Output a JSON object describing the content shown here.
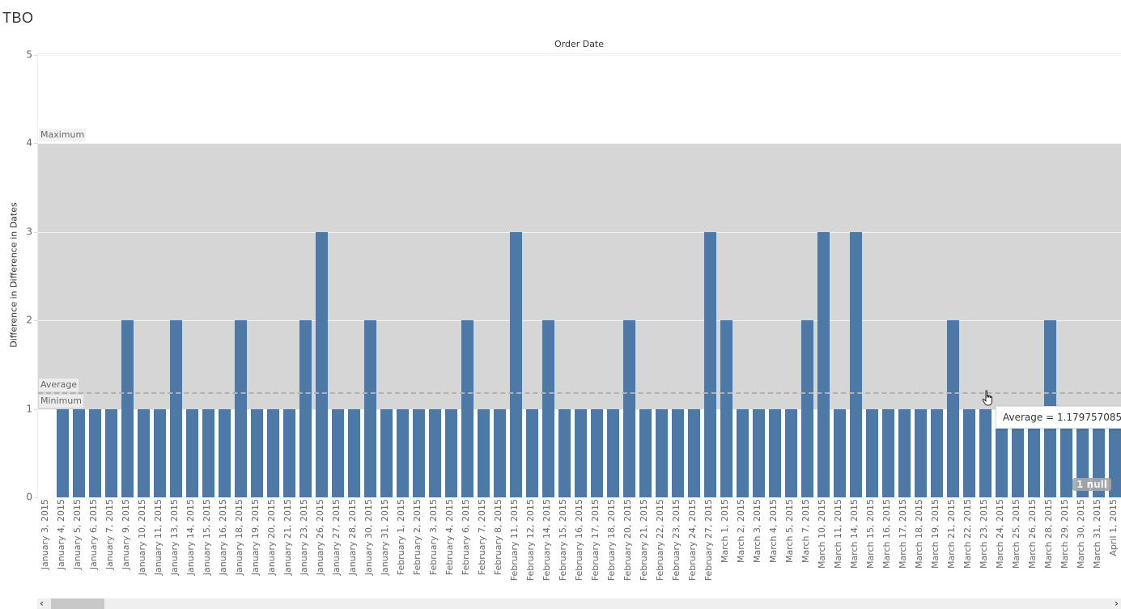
{
  "title": "TBO",
  "column_header": "Order Date",
  "y_axis_title": "Difference in Difference in Dates",
  "y_ticks": [
    "0",
    "1",
    "2",
    "3",
    "4",
    "5"
  ],
  "reference_labels": {
    "maximum": "Maximum",
    "average": "Average",
    "minimum": "Minimum"
  },
  "tooltip": "Average = 1.179757085",
  "null_badge": "1 null",
  "scrollbar": {
    "left_arrow": "‹",
    "right_arrow": "›"
  },
  "colors": {
    "bar": "#4e79a7",
    "band": "#d6d6d6",
    "average_line": "#b5b0b0"
  },
  "chart_data": {
    "type": "bar",
    "title": "TBO",
    "xlabel": "Order Date",
    "ylabel": "Difference in Difference in Dates",
    "ylim": [
      0,
      5
    ],
    "grid": true,
    "reference_lines": {
      "minimum": 1,
      "maximum": 4,
      "average": 1.179757085
    },
    "reference_band": [
      1,
      4
    ],
    "null_count": 1,
    "categories": [
      "January 3, 2015",
      "January 4, 2015",
      "January 5, 2015",
      "January 6, 2015",
      "January 7, 2015",
      "January 9, 2015",
      "January 10, 2015",
      "January 11, 2015",
      "January 13, 2015",
      "January 14, 2015",
      "January 15, 2015",
      "January 16, 2015",
      "January 18, 2015",
      "January 19, 2015",
      "January 20, 2015",
      "January 21, 2015",
      "January 23, 2015",
      "January 26, 2015",
      "January 27, 2015",
      "January 28, 2015",
      "January 30, 2015",
      "January 31, 2015",
      "February 1, 2015",
      "February 2, 2015",
      "February 3, 2015",
      "February 4, 2015",
      "February 6, 2015",
      "February 7, 2015",
      "February 8, 2015",
      "February 11, 2015",
      "February 12, 2015",
      "February 14, 2015",
      "February 15, 2015",
      "February 16, 2015",
      "February 17, 2015",
      "February 18, 2015",
      "February 20, 2015",
      "February 21, 2015",
      "February 22, 2015",
      "February 23, 2015",
      "February 24, 2015",
      "February 27, 2015",
      "March 1, 2015",
      "March 2, 2015",
      "March 3, 2015",
      "March 4, 2015",
      "March 5, 2015",
      "March 7, 2015",
      "March 10, 2015",
      "March 11, 2015",
      "March 14, 2015",
      "March 15, 2015",
      "March 16, 2015",
      "March 17, 2015",
      "March 18, 2015",
      "March 19, 2015",
      "March 21, 2015",
      "March 22, 2015",
      "March 23, 2015",
      "March 24, 2015",
      "March 25, 2015",
      "March 26, 2015",
      "March 28, 2015",
      "March 29, 2015",
      "March 30, 2015",
      "March 31, 2015",
      "April 1, 2015"
    ],
    "values": [
      null,
      1,
      1,
      1,
      1,
      2,
      1,
      1,
      2,
      1,
      1,
      1,
      2,
      1,
      1,
      1,
      2,
      3,
      1,
      1,
      2,
      1,
      1,
      1,
      1,
      1,
      2,
      1,
      1,
      3,
      1,
      2,
      1,
      1,
      1,
      1,
      2,
      1,
      1,
      1,
      1,
      3,
      2,
      1,
      1,
      1,
      1,
      2,
      3,
      1,
      3,
      1,
      1,
      1,
      1,
      1,
      2,
      1,
      1,
      1,
      1,
      1,
      2,
      1,
      1,
      1,
      1
    ]
  }
}
